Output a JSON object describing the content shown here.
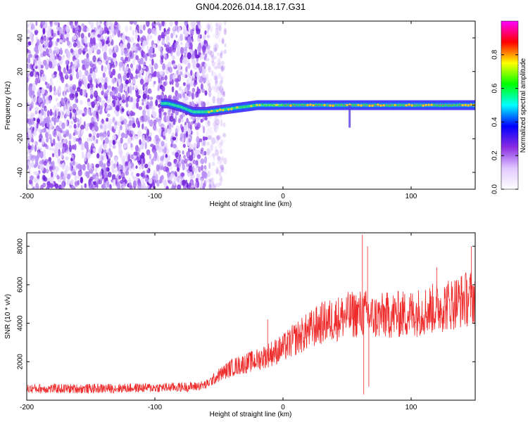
{
  "title": "GN04.2026.014.18.17.G31",
  "chart_data": [
    {
      "type": "heatmap",
      "xlabel": "Height of straight line (km)",
      "ylabel": "Frequency (Hz)",
      "xlim": [
        -200,
        150
      ],
      "ylim": [
        -50,
        50
      ],
      "xticks": [
        -200,
        -100,
        0,
        100
      ],
      "yticks": [
        -40,
        -20,
        0,
        20,
        40
      ],
      "colorbar": {
        "label": "Normalized spectral amplitude",
        "range": [
          0,
          1
        ],
        "ticks": [
          "0.0",
          "0.2",
          "0.4",
          "0.6",
          "0.8"
        ],
        "colors": [
          "#ffffff",
          "#e0c8ff",
          "#8a2be2",
          "#0000ff",
          "#00ffff",
          "#00ff00",
          "#ffff00",
          "#ff0000",
          "#ff00ff"
        ]
      },
      "noise_region_x": [
        -200,
        -60
      ],
      "signal_trace": {
        "x": [
          -90,
          -80,
          -70,
          -60,
          -50,
          -40,
          -30,
          -20,
          -10,
          0,
          20,
          50,
          100,
          150
        ],
        "y": [
          1,
          -1,
          -4,
          -4,
          -3,
          -2,
          -1,
          0,
          0,
          0,
          0,
          0,
          0,
          0
        ]
      }
    },
    {
      "type": "line",
      "xlabel": "Height of straight line (km)",
      "ylabel": "SNR (10 * v/v)",
      "xlim": [
        -200,
        150
      ],
      "ylim": [
        0,
        8700
      ],
      "xticks": [
        -200,
        -100,
        0,
        100
      ],
      "yticks": [
        2000,
        4000,
        6000,
        8000
      ],
      "color": "#ee2c2c",
      "envelope": {
        "x": [
          -200,
          -150,
          -100,
          -70,
          -60,
          -50,
          -40,
          -30,
          -20,
          -10,
          0,
          10,
          20,
          30,
          40,
          50,
          60,
          65,
          70,
          80,
          100,
          120,
          140,
          150
        ],
        "y": [
          600,
          600,
          650,
          700,
          800,
          1300,
          1700,
          1900,
          2100,
          2400,
          2700,
          3200,
          3600,
          4000,
          4200,
          4400,
          4500,
          4500,
          4300,
          4400,
          4500,
          4800,
          5200,
          5400
        ]
      },
      "spikes": [
        {
          "x": 62,
          "y": 8600
        },
        {
          "x": 63,
          "y": 300
        },
        {
          "x": 66,
          "y": 8000
        },
        {
          "x": 67,
          "y": 700
        },
        {
          "x": 120,
          "y": 6900
        },
        {
          "x": 147,
          "y": 8000
        },
        {
          "x": -12,
          "y": 4200
        }
      ]
    }
  ]
}
